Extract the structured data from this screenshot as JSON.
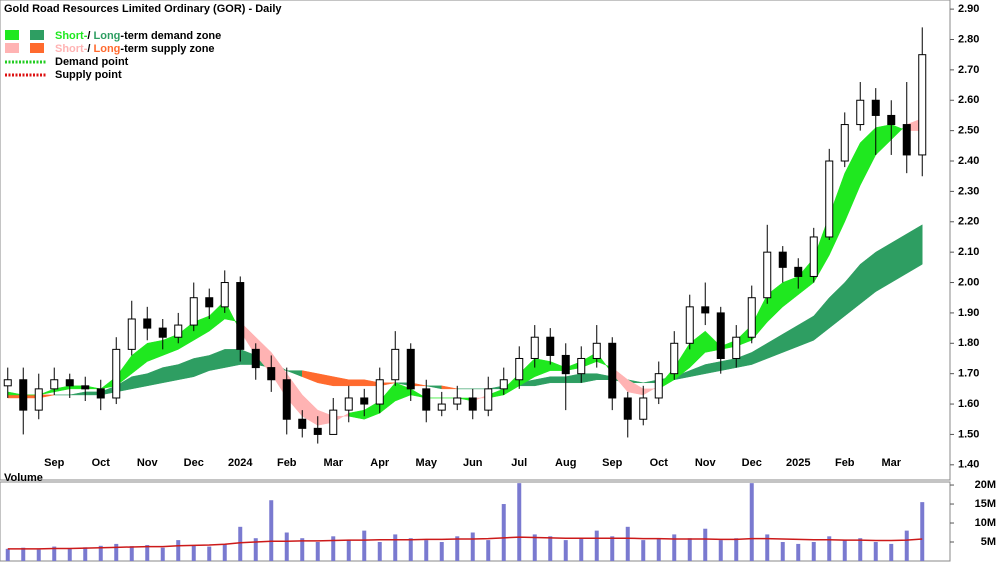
{
  "chart_data": [
    {
      "type": "candlestick",
      "title": "Gold Road Resources Limited Ordinary (GOR) - Daily",
      "categories": [
        null,
        null,
        null,
        "Sep",
        null,
        null,
        "Oct",
        null,
        null,
        "Nov",
        null,
        null,
        "Dec",
        null,
        null,
        "2024",
        null,
        null,
        "Feb",
        null,
        null,
        "Mar",
        null,
        null,
        "Apr",
        null,
        null,
        "May",
        null,
        null,
        "Jun",
        null,
        null,
        "Jul",
        null,
        null,
        "Aug",
        null,
        null,
        "Sep",
        null,
        null,
        "Oct",
        null,
        null,
        "Nov",
        null,
        null,
        "Dec",
        null,
        null,
        "2025",
        null,
        null,
        "Feb",
        null,
        null,
        "Mar",
        null,
        null
      ],
      "open": [
        1.66,
        1.68,
        1.58,
        1.65,
        1.68,
        1.66,
        1.65,
        1.62,
        1.78,
        1.88,
        1.85,
        1.82,
        1.86,
        1.95,
        1.92,
        2.0,
        1.78,
        1.72,
        1.68,
        1.55,
        1.52,
        1.5,
        1.58,
        1.62,
        1.6,
        1.68,
        1.78,
        1.65,
        1.58,
        1.6,
        1.62,
        1.58,
        1.65,
        1.68,
        1.75,
        1.82,
        1.76,
        1.7,
        1.75,
        1.8,
        1.62,
        1.55,
        1.62,
        1.7,
        1.8,
        1.92,
        1.9,
        1.75,
        1.82,
        1.95,
        2.1,
        2.05,
        2.02,
        2.15,
        2.4,
        2.52,
        2.6,
        2.55,
        2.52,
        2.42
      ],
      "high": [
        1.72,
        1.72,
        1.7,
        1.72,
        1.7,
        1.69,
        1.68,
        1.82,
        1.94,
        1.92,
        1.88,
        1.9,
        2.0,
        1.98,
        2.04,
        2.02,
        1.8,
        1.76,
        1.72,
        1.58,
        1.56,
        1.62,
        1.66,
        1.65,
        1.72,
        1.84,
        1.8,
        1.68,
        1.64,
        1.66,
        1.65,
        1.69,
        1.72,
        1.79,
        1.86,
        1.85,
        1.8,
        1.79,
        1.86,
        1.82,
        1.64,
        1.66,
        1.74,
        1.84,
        1.96,
        2.0,
        1.92,
        1.86,
        1.99,
        2.19,
        2.12,
        2.08,
        2.18,
        2.44,
        2.56,
        2.66,
        2.64,
        2.6,
        2.66,
        2.84
      ],
      "low": [
        1.62,
        1.5,
        1.55,
        1.63,
        1.62,
        1.61,
        1.58,
        1.6,
        1.76,
        1.81,
        1.78,
        1.8,
        1.84,
        1.88,
        1.9,
        1.74,
        1.68,
        1.64,
        1.5,
        1.49,
        1.47,
        1.5,
        1.54,
        1.56,
        1.57,
        1.66,
        1.61,
        1.54,
        1.56,
        1.58,
        1.55,
        1.56,
        1.63,
        1.65,
        1.72,
        1.73,
        1.58,
        1.67,
        1.72,
        1.58,
        1.49,
        1.53,
        1.6,
        1.68,
        1.78,
        1.86,
        1.7,
        1.72,
        1.8,
        1.93,
        2.0,
        1.98,
        2.0,
        2.14,
        2.38,
        2.5,
        2.42,
        2.42,
        2.36,
        2.35
      ],
      "close": [
        1.68,
        1.58,
        1.65,
        1.68,
        1.66,
        1.65,
        1.62,
        1.78,
        1.88,
        1.85,
        1.82,
        1.86,
        1.95,
        1.92,
        2.0,
        1.78,
        1.72,
        1.68,
        1.55,
        1.52,
        1.5,
        1.58,
        1.62,
        1.6,
        1.68,
        1.78,
        1.65,
        1.58,
        1.6,
        1.62,
        1.58,
        1.65,
        1.68,
        1.75,
        1.82,
        1.76,
        1.7,
        1.75,
        1.8,
        1.62,
        1.55,
        1.62,
        1.7,
        1.8,
        1.92,
        1.9,
        1.75,
        1.82,
        1.95,
        2.1,
        2.05,
        2.02,
        2.15,
        2.4,
        2.52,
        2.6,
        2.55,
        2.52,
        2.42,
        2.75
      ],
      "up_color": "#ffffff",
      "down_color": "#000000",
      "zones": {
        "short_fast": [
          1.64,
          1.63,
          1.63,
          1.65,
          1.66,
          1.66,
          1.65,
          1.69,
          1.76,
          1.8,
          1.81,
          1.83,
          1.87,
          1.89,
          1.94,
          1.84,
          1.76,
          1.7,
          1.62,
          1.56,
          1.53,
          1.54,
          1.57,
          1.58,
          1.61,
          1.67,
          1.65,
          1.62,
          1.62,
          1.62,
          1.61,
          1.63,
          1.65,
          1.7,
          1.75,
          1.74,
          1.72,
          1.74,
          1.77,
          1.7,
          1.64,
          1.63,
          1.66,
          1.72,
          1.8,
          1.84,
          1.79,
          1.81,
          1.86,
          1.96,
          2.0,
          2.02,
          2.08,
          2.22,
          2.36,
          2.46,
          2.51,
          2.52,
          2.5,
          2.5
        ],
        "short_slow": [
          1.63,
          1.63,
          1.63,
          1.64,
          1.65,
          1.65,
          1.65,
          1.66,
          1.7,
          1.74,
          1.76,
          1.78,
          1.81,
          1.84,
          1.88,
          1.87,
          1.82,
          1.77,
          1.7,
          1.63,
          1.58,
          1.56,
          1.56,
          1.55,
          1.57,
          1.61,
          1.63,
          1.62,
          1.62,
          1.62,
          1.62,
          1.62,
          1.63,
          1.66,
          1.69,
          1.71,
          1.71,
          1.72,
          1.74,
          1.72,
          1.68,
          1.65,
          1.65,
          1.68,
          1.72,
          1.77,
          1.78,
          1.79,
          1.81,
          1.87,
          1.92,
          1.96,
          2.0,
          2.09,
          2.2,
          2.32,
          2.42,
          2.47,
          2.52,
          2.54
        ],
        "long_fast": [
          1.62,
          1.62,
          1.62,
          1.63,
          1.63,
          1.64,
          1.64,
          1.66,
          1.69,
          1.7,
          1.72,
          1.73,
          1.75,
          1.76,
          1.78,
          1.78,
          1.76,
          1.74,
          1.71,
          1.69,
          1.67,
          1.66,
          1.66,
          1.66,
          1.66,
          1.67,
          1.66,
          1.66,
          1.65,
          1.65,
          1.65,
          1.65,
          1.66,
          1.67,
          1.68,
          1.69,
          1.69,
          1.7,
          1.7,
          1.69,
          1.68,
          1.67,
          1.68,
          1.69,
          1.71,
          1.73,
          1.74,
          1.75,
          1.77,
          1.8,
          1.83,
          1.86,
          1.89,
          1.95,
          2.0,
          2.06,
          2.1,
          2.13,
          2.16,
          2.19
        ],
        "long_slow": [
          1.63,
          1.63,
          1.63,
          1.63,
          1.63,
          1.63,
          1.63,
          1.64,
          1.65,
          1.66,
          1.67,
          1.68,
          1.69,
          1.71,
          1.72,
          1.73,
          1.73,
          1.72,
          1.71,
          1.71,
          1.7,
          1.69,
          1.68,
          1.68,
          1.67,
          1.67,
          1.67,
          1.66,
          1.66,
          1.65,
          1.65,
          1.65,
          1.65,
          1.66,
          1.66,
          1.67,
          1.67,
          1.67,
          1.68,
          1.68,
          1.67,
          1.67,
          1.67,
          1.68,
          1.69,
          1.7,
          1.71,
          1.72,
          1.73,
          1.75,
          1.77,
          1.79,
          1.81,
          1.85,
          1.89,
          1.93,
          1.97,
          2.0,
          2.03,
          2.06
        ],
        "short_demand_color": "#1fe81f",
        "long_demand_color": "#2e9e62",
        "short_supply_color": "#ffb3b3",
        "long_supply_color": "#ff6a2e",
        "demand_point_color": "#22cc22",
        "supply_point_color": "#dd1111"
      },
      "legend": {
        "demand_zone": [
          "Short-",
          "/ ",
          "Long",
          "-term demand zone"
        ],
        "supply_zone": [
          "Short-",
          "/ ",
          "Long",
          "-term supply zone"
        ],
        "demand_point": "Demand point",
        "supply_point": "Supply point"
      },
      "ylim": [
        1.35,
        2.93
      ],
      "yticks": [
        {
          "value": 1.4,
          "label": "1.40"
        },
        {
          "value": 1.5,
          "label": "1.50"
        },
        {
          "value": 1.6,
          "label": "1.60"
        },
        {
          "value": 1.7,
          "label": "1.70"
        },
        {
          "value": 1.8,
          "label": "1.80"
        },
        {
          "value": 1.9,
          "label": "1.90"
        },
        {
          "value": 2.0,
          "label": "2.00"
        },
        {
          "value": 2.1,
          "label": "2.10"
        },
        {
          "value": 2.2,
          "label": "2.20"
        },
        {
          "value": 2.3,
          "label": "2.30"
        },
        {
          "value": 2.4,
          "label": "2.40"
        },
        {
          "value": 2.5,
          "label": "2.50"
        },
        {
          "value": 2.6,
          "label": "2.60"
        },
        {
          "value": 2.7,
          "label": "2.70"
        },
        {
          "value": 2.8,
          "label": "2.80"
        },
        {
          "value": 2.9,
          "label": "2.90"
        }
      ]
    },
    {
      "type": "bar",
      "title": "Volume",
      "color": "#7a7ad0",
      "values": [
        3200000,
        3500000,
        3000000,
        3800000,
        3300000,
        3600000,
        4000000,
        4500000,
        3900000,
        4200000,
        3500000,
        5500000,
        4000000,
        3800000,
        4500000,
        9000000,
        6000000,
        16000000,
        7500000,
        6000000,
        5000000,
        6500000,
        5500000,
        8000000,
        5000000,
        7000000,
        6000000,
        5500000,
        5000000,
        6500000,
        7500000,
        5500000,
        15000000,
        20500000,
        7000000,
        6500000,
        5500000,
        6000000,
        8000000,
        6500000,
        9000000,
        5500000,
        6000000,
        7000000,
        6000000,
        8500000,
        5500000,
        6000000,
        20500000,
        7000000,
        5000000,
        4500000,
        5000000,
        6500000,
        5500000,
        6000000,
        5000000,
        4500000,
        8000000,
        15500000
      ],
      "ma": {
        "color": "#cc1a1a",
        "values": [
          3200000,
          3200000,
          3200000,
          3300000,
          3300000,
          3400000,
          3500000,
          3600000,
          3700000,
          3800000,
          3800000,
          4000000,
          4100000,
          4200000,
          4400000,
          4800000,
          5000000,
          5200000,
          5200000,
          5300000,
          5300000,
          5400000,
          5500000,
          5500000,
          5600000,
          5600000,
          5600000,
          5700000,
          5700000,
          5800000,
          5800000,
          5900000,
          6100000,
          6300000,
          6200000,
          6100000,
          6000000,
          6000000,
          6000000,
          6000000,
          6000000,
          5900000,
          5900000,
          5800000,
          5800000,
          5800000,
          5700000,
          5700000,
          5900000,
          5900000,
          5800000,
          5700000,
          5600000,
          5600000,
          5500000,
          5500000,
          5400000,
          5400000,
          5500000,
          5800000
        ]
      },
      "ylim": [
        0,
        20800000
      ],
      "yticks": [
        {
          "value": 5000000,
          "label": "5M"
        },
        {
          "value": 10000000,
          "label": "10M"
        },
        {
          "value": 15000000,
          "label": "15M"
        },
        {
          "value": 20000000,
          "label": "20M"
        }
      ]
    }
  ]
}
